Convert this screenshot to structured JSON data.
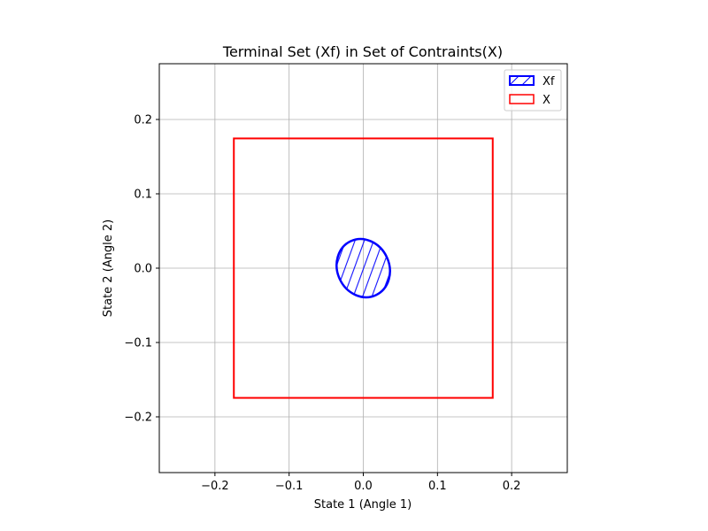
{
  "chart_data": {
    "type": "line",
    "title": "Terminal Set (Xf) in Set of Contraints(X)",
    "xlabel": "State 1 (Angle 1)",
    "ylabel": "State 2 (Angle 2)",
    "xlim": [
      -0.275,
      0.275
    ],
    "ylim": [
      -0.275,
      0.275
    ],
    "xticks": [
      -0.2,
      -0.1,
      0.0,
      0.1,
      0.2
    ],
    "xtick_labels": [
      "−0.2",
      "−0.1",
      "0.0",
      "0.1",
      "0.2"
    ],
    "yticks": [
      -0.2,
      -0.1,
      0.0,
      0.1,
      0.2
    ],
    "ytick_labels": [
      "−0.2",
      "−0.1",
      "0.0",
      "0.1",
      "0.2"
    ],
    "grid": true,
    "legend_position": "top-right",
    "series": [
      {
        "name": "Xf",
        "shape": "ellipse",
        "center": [
          0.0,
          0.0
        ],
        "semi_axes": [
          0.035,
          0.04
        ],
        "rotation_deg": 25,
        "fill": "hatched",
        "color": "#0000ff"
      },
      {
        "name": "X",
        "shape": "rectangle",
        "x_range": [
          -0.1745,
          0.1745
        ],
        "y_range": [
          -0.1745,
          0.1745
        ],
        "fill": "none",
        "color": "#ff0000"
      }
    ]
  }
}
